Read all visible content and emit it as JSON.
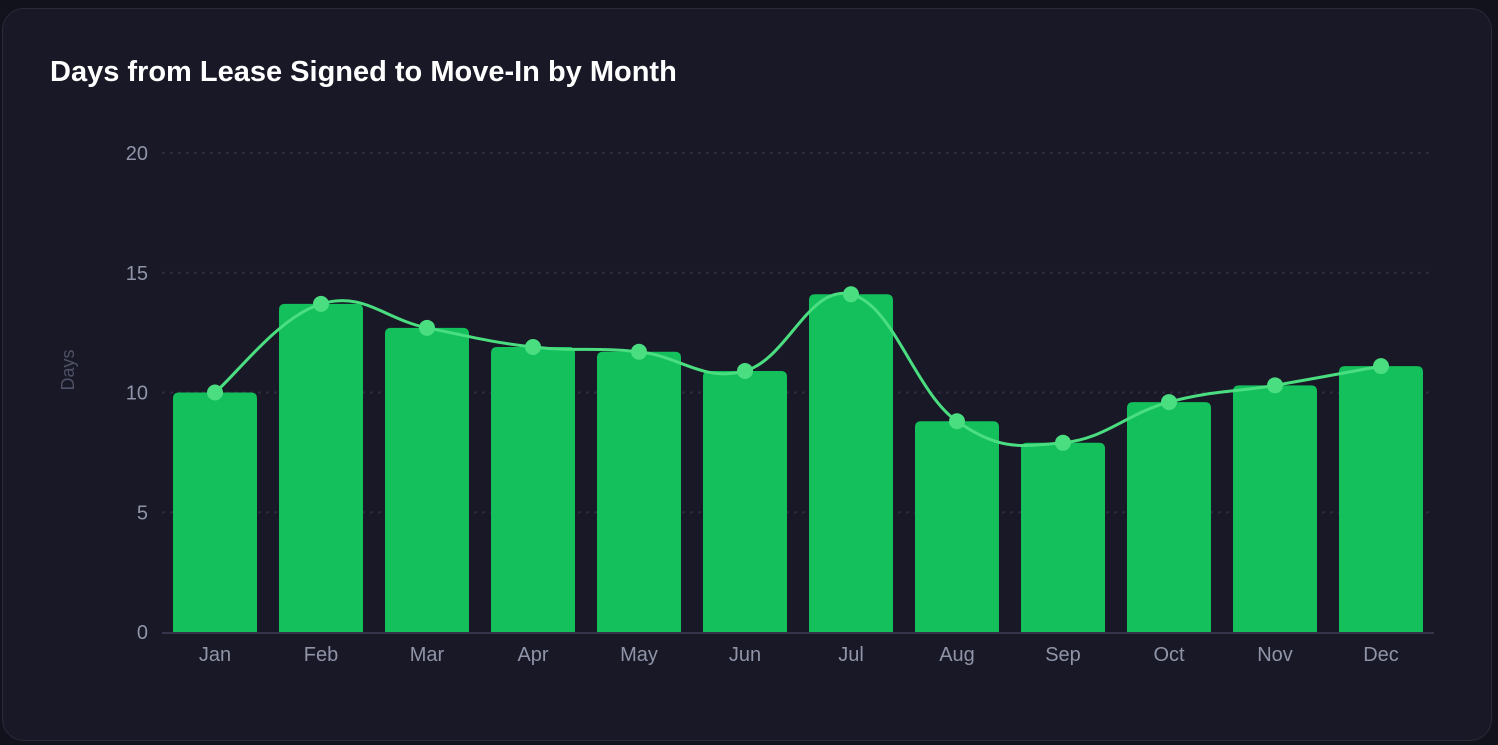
{
  "card": {
    "background": "#181826",
    "border": "#2a2a3c"
  },
  "chart_data": {
    "type": "bar",
    "title": "Days from Lease Signed to Move-In by Month",
    "xlabel": "",
    "ylabel": "Days",
    "ylim": [
      0,
      20
    ],
    "yticks": [
      0,
      5,
      10,
      15,
      20
    ],
    "grid": "horizontal-dotted",
    "legend": "none",
    "categories": [
      "Jan",
      "Feb",
      "Mar",
      "Apr",
      "May",
      "Jun",
      "Jul",
      "Aug",
      "Sep",
      "Oct",
      "Nov",
      "Dec"
    ],
    "series": [
      {
        "type": "bar",
        "values": [
          10.0,
          13.7,
          12.7,
          11.9,
          11.7,
          10.9,
          14.1,
          8.8,
          7.9,
          9.6,
          10.3,
          11.1
        ],
        "color": "#13c05c"
      },
      {
        "type": "line",
        "smooth": true,
        "values": [
          10.0,
          13.7,
          12.7,
          11.9,
          11.7,
          10.9,
          14.1,
          8.8,
          7.9,
          9.6,
          10.3,
          11.1
        ],
        "color": "#4ade80"
      }
    ]
  }
}
